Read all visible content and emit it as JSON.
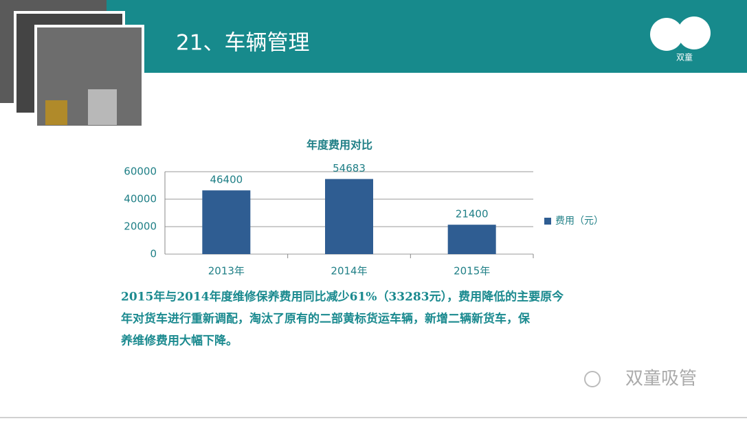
{
  "slide": {
    "heading": "21、车辆管理",
    "logo": "双童",
    "watermark": "双童吸管",
    "paragraph": [
      "2015年与2014年度维修保养费用同比减少61%（33283元），费用降低的主要原今",
      "年对货车进行重新调配，淘汰了原有的二部黄标货运车辆，新增二辆新货车，保",
      "养维修费用大幅下降。"
    ]
  },
  "chart_data": {
    "type": "bar",
    "title": "年度费用对比",
    "categories": [
      "2013年",
      "2014年",
      "2015年"
    ],
    "series": [
      {
        "name": "费用（元）",
        "color": "#2f5d92",
        "values": [
          46400,
          54683,
          21400
        ]
      }
    ],
    "ylim": [
      0,
      60000
    ],
    "yticks": [
      0,
      20000,
      40000,
      60000
    ],
    "grid": true,
    "legend": "right"
  }
}
